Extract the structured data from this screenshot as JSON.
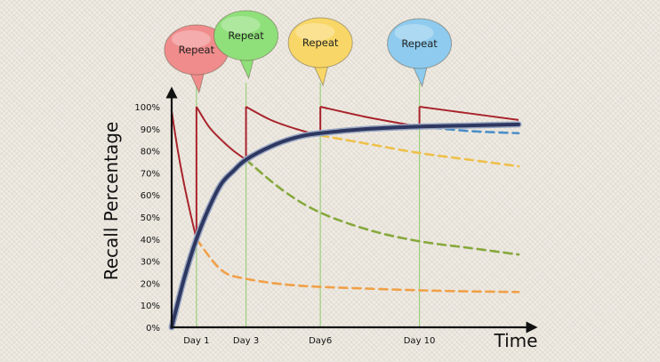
{
  "chart_data": {
    "type": "line",
    "ylabel": "Recall Percentage",
    "xlabel": "Time",
    "y_ticks": [
      "100%",
      "90%",
      "80%",
      "70%",
      "60%",
      "50%",
      "40%",
      "30%",
      "20%",
      "10%",
      "0%"
    ],
    "day_ticks": [
      {
        "label": "Day 1",
        "x": 1
      },
      {
        "label": "Day 3",
        "x": 3
      },
      {
        "label": "Day6",
        "x": 6
      },
      {
        "label": "Day 10",
        "x": 10
      }
    ],
    "xlim": [
      0,
      14
    ],
    "ylim": [
      0,
      100
    ],
    "bubbles": [
      {
        "text": "Repeat",
        "color": "#f08c8c",
        "x": 1
      },
      {
        "text": "Repeat",
        "color": "#8fe07a",
        "x": 3
      },
      {
        "text": "Repeat",
        "color": "#f8d768",
        "x": 6
      },
      {
        "text": "Repeat",
        "color": "#8ecbee",
        "x": 10
      }
    ],
    "series": [
      {
        "role": "retention-after-repeats",
        "color": "#a8232b",
        "style": "solid",
        "segments": [
          [
            [
              0,
              98
            ],
            [
              0.25,
              80
            ],
            [
              0.5,
              65
            ],
            [
              0.75,
              52
            ],
            [
              1,
              40
            ]
          ],
          [
            [
              1,
              100
            ],
            [
              1.5,
              91
            ],
            [
              2,
              85
            ],
            [
              2.5,
              80
            ],
            [
              3,
              76
            ]
          ],
          [
            [
              3,
              100
            ],
            [
              4,
              94
            ],
            [
              5,
              90
            ],
            [
              6,
              87
            ]
          ],
          [
            [
              6,
              100
            ],
            [
              8,
              95
            ],
            [
              10,
              91
            ]
          ],
          [
            [
              10,
              100
            ],
            [
              12,
              97
            ],
            [
              14,
              94
            ]
          ]
        ]
      },
      {
        "role": "forgetting-after-day1",
        "color": "#f0a048",
        "style": "dashed",
        "points": [
          [
            1,
            40
          ],
          [
            2,
            26
          ],
          [
            3,
            22
          ],
          [
            5,
            19
          ],
          [
            8,
            17.5
          ],
          [
            11,
            16.5
          ],
          [
            14,
            16
          ]
        ]
      },
      {
        "role": "forgetting-after-day3",
        "color": "#86a83c",
        "style": "dashed",
        "points": [
          [
            3,
            76
          ],
          [
            4.5,
            62
          ],
          [
            6,
            52
          ],
          [
            8,
            44
          ],
          [
            10,
            39
          ],
          [
            12,
            36
          ],
          [
            14,
            33
          ]
        ]
      },
      {
        "role": "forgetting-after-day6",
        "color": "#eec04a",
        "style": "dashed",
        "points": [
          [
            6,
            87
          ],
          [
            8,
            83
          ],
          [
            10,
            79
          ],
          [
            12,
            76
          ],
          [
            14,
            73
          ]
        ]
      },
      {
        "role": "forgetting-after-day10",
        "color": "#4a8fc8",
        "style": "dashed",
        "points": [
          [
            10,
            91
          ],
          [
            12,
            89
          ],
          [
            14,
            88
          ]
        ]
      },
      {
        "role": "memory-strength",
        "color": "#2d3760",
        "style": "solid-thick",
        "points": [
          [
            0,
            0
          ],
          [
            0.5,
            22
          ],
          [
            1,
            40
          ],
          [
            1.5,
            54
          ],
          [
            2,
            65
          ],
          [
            2.5,
            71
          ],
          [
            3,
            76
          ],
          [
            4,
            82
          ],
          [
            5,
            86
          ],
          [
            6,
            88
          ],
          [
            8,
            90
          ],
          [
            10,
            91
          ],
          [
            12,
            91.5
          ],
          [
            14,
            92
          ]
        ]
      }
    ]
  }
}
